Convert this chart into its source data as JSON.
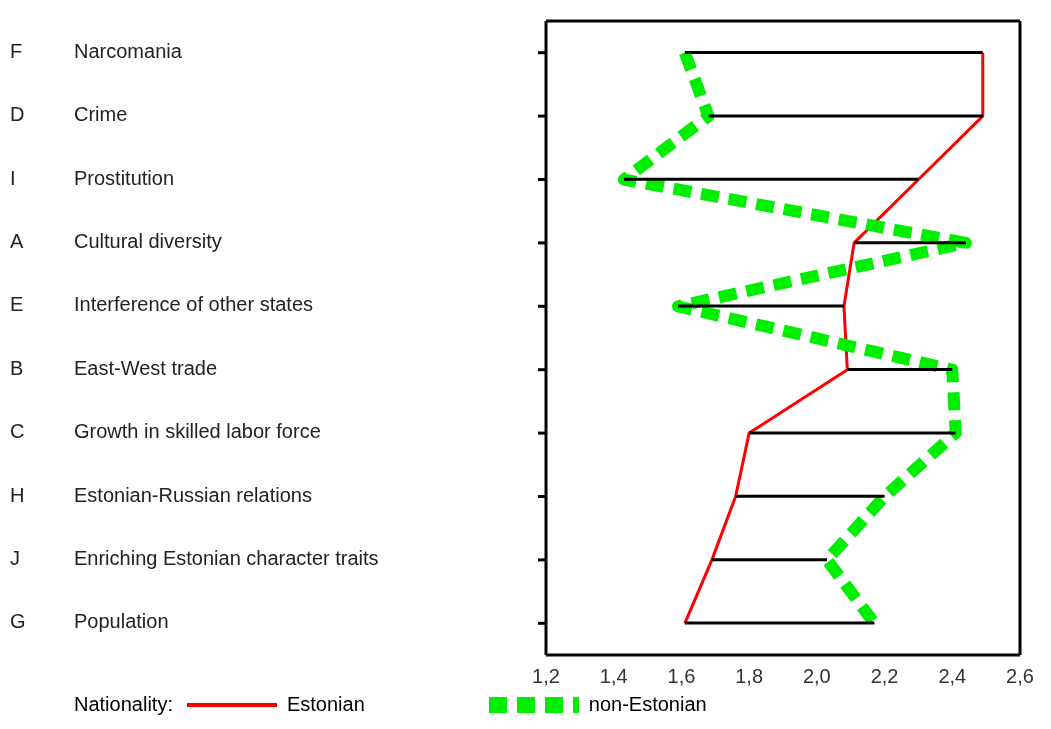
{
  "chart_data": {
    "type": "line",
    "orientation": "horizontal",
    "categories": [
      "F Narcomania",
      "D Crime",
      "I Prostitution",
      "A Cultural diversity",
      "E Interference of other states",
      "B East-West trade",
      "C Growth in skilled labor force",
      "H Estonian-Russian relations",
      "J Enriching Estonian character traits",
      "G Population"
    ],
    "series": [
      {
        "type": "bar",
        "color": "#000000",
        "base": [
          1.61,
          1.68,
          1.43,
          2.11,
          1.59,
          2.09,
          1.8,
          1.76,
          1.69,
          1.61
        ],
        "values": [
          0.88,
          0.81,
          0.87,
          0.33,
          0.49,
          0.31,
          0.61,
          0.44,
          0.34,
          0.56
        ]
      },
      {
        "name": "Estonian",
        "color": "#ff0000",
        "line_style": "solid",
        "values": [
          2.49,
          2.49,
          2.3,
          2.11,
          2.08,
          2.09,
          1.8,
          1.76,
          1.69,
          1.61
        ]
      },
      {
        "name": "non-Estonian",
        "color": "#00ee00",
        "line_style": "dashed",
        "values": [
          1.61,
          1.68,
          1.43,
          2.44,
          1.59,
          2.4,
          2.41,
          2.2,
          2.03,
          2.17
        ]
      }
    ],
    "xlim": [
      1.2,
      2.6
    ],
    "xticks": [
      {
        "value": 1.2,
        "label": "1,2"
      },
      {
        "value": 1.4,
        "label": "1,4"
      },
      {
        "value": 1.6,
        "label": "1,6"
      },
      {
        "value": 1.8,
        "label": "1,8"
      },
      {
        "value": 2.0,
        "label": "2,0"
      },
      {
        "value": 2.2,
        "label": "2,2"
      },
      {
        "value": 2.4,
        "label": "2,4"
      },
      {
        "value": 2.6,
        "label": "2,6"
      }
    ],
    "legend_title": "Nationality:",
    "legend": "bottom",
    "grid": false,
    "marker": "none"
  }
}
